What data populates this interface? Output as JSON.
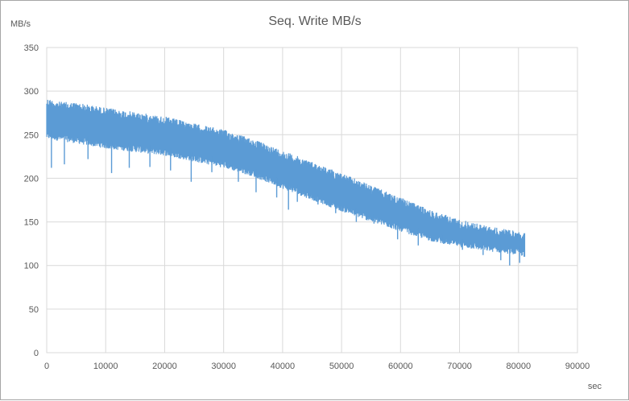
{
  "chart_data": {
    "type": "line",
    "title": "Seq. Write MB/s",
    "ylabel": "MB/s",
    "xlabel": "sec",
    "xlim": [
      0,
      90000
    ],
    "ylim": [
      0,
      350
    ],
    "xticks": [
      0,
      10000,
      20000,
      30000,
      40000,
      50000,
      60000,
      70000,
      80000,
      90000
    ],
    "yticks": [
      0,
      50,
      100,
      150,
      200,
      250,
      300,
      350
    ],
    "grid": true,
    "legend": "none",
    "series_color": "#5b9bd5",
    "series": [
      {
        "x": [
          0,
          2000,
          5000,
          10000,
          15000,
          20000,
          25000,
          30000,
          35000,
          40000,
          45000,
          50000,
          55000,
          60000,
          65000,
          70000,
          75000,
          80000,
          81000
        ],
        "upper": [
          292,
          288,
          287,
          281,
          276,
          271,
          263,
          256,
          245,
          232,
          219,
          206,
          192,
          178,
          164,
          153,
          145,
          139,
          137
        ],
        "lower": [
          245,
          243,
          240,
          234,
          230,
          226,
          219,
          212,
          202,
          188,
          175,
          162,
          150,
          139,
          128,
          121,
          116,
          112,
          110
        ],
        "dips": [
          [
            800,
            212
          ],
          [
            3000,
            216
          ],
          [
            7000,
            222
          ],
          [
            11000,
            206
          ],
          [
            14000,
            212
          ],
          [
            17500,
            213
          ],
          [
            21000,
            209
          ],
          [
            24500,
            196
          ],
          [
            28000,
            207
          ],
          [
            32500,
            196
          ],
          [
            35500,
            184
          ],
          [
            39000,
            178
          ],
          [
            41000,
            164
          ],
          [
            42500,
            173
          ],
          [
            46000,
            170
          ],
          [
            49000,
            160
          ],
          [
            52500,
            150
          ],
          [
            55500,
            148
          ],
          [
            59500,
            130
          ],
          [
            63000,
            123
          ],
          [
            67000,
            128
          ],
          [
            70500,
            118
          ],
          [
            74000,
            112
          ],
          [
            77000,
            106
          ],
          [
            78500,
            100
          ],
          [
            80200,
            103
          ]
        ]
      }
    ]
  }
}
